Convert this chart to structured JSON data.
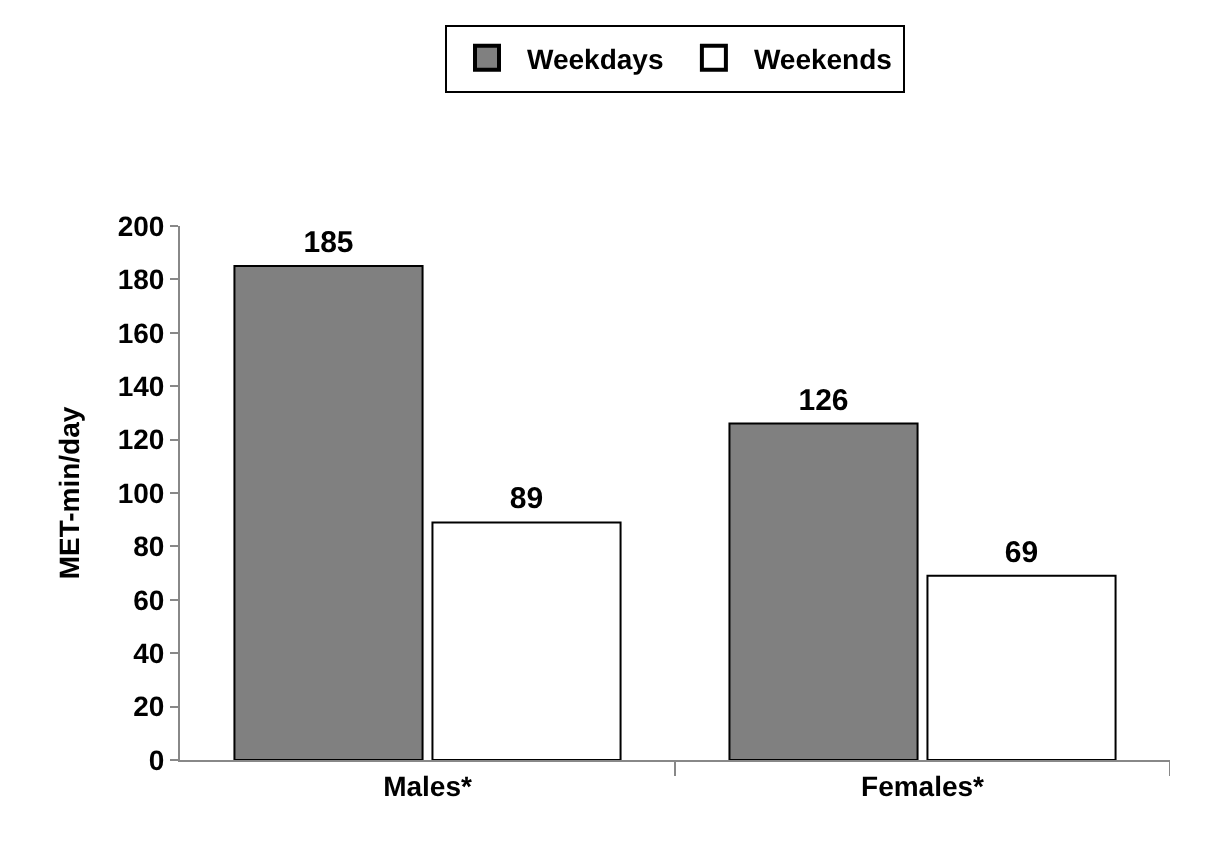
{
  "chart_data": {
    "type": "bar",
    "ylabel": "MET-min/day",
    "categories": [
      "Males*",
      "Females*"
    ],
    "series": [
      {
        "name": "Weekdays",
        "color": "#808080",
        "values": [
          185,
          126
        ]
      },
      {
        "name": "Weekends",
        "color": "#ffffff",
        "values": [
          89,
          69
        ]
      }
    ],
    "ylim": [
      0,
      200
    ],
    "yticks": [
      0,
      20,
      40,
      60,
      80,
      100,
      120,
      140,
      160,
      180,
      200
    ],
    "legend": "top",
    "data_labels": true
  }
}
